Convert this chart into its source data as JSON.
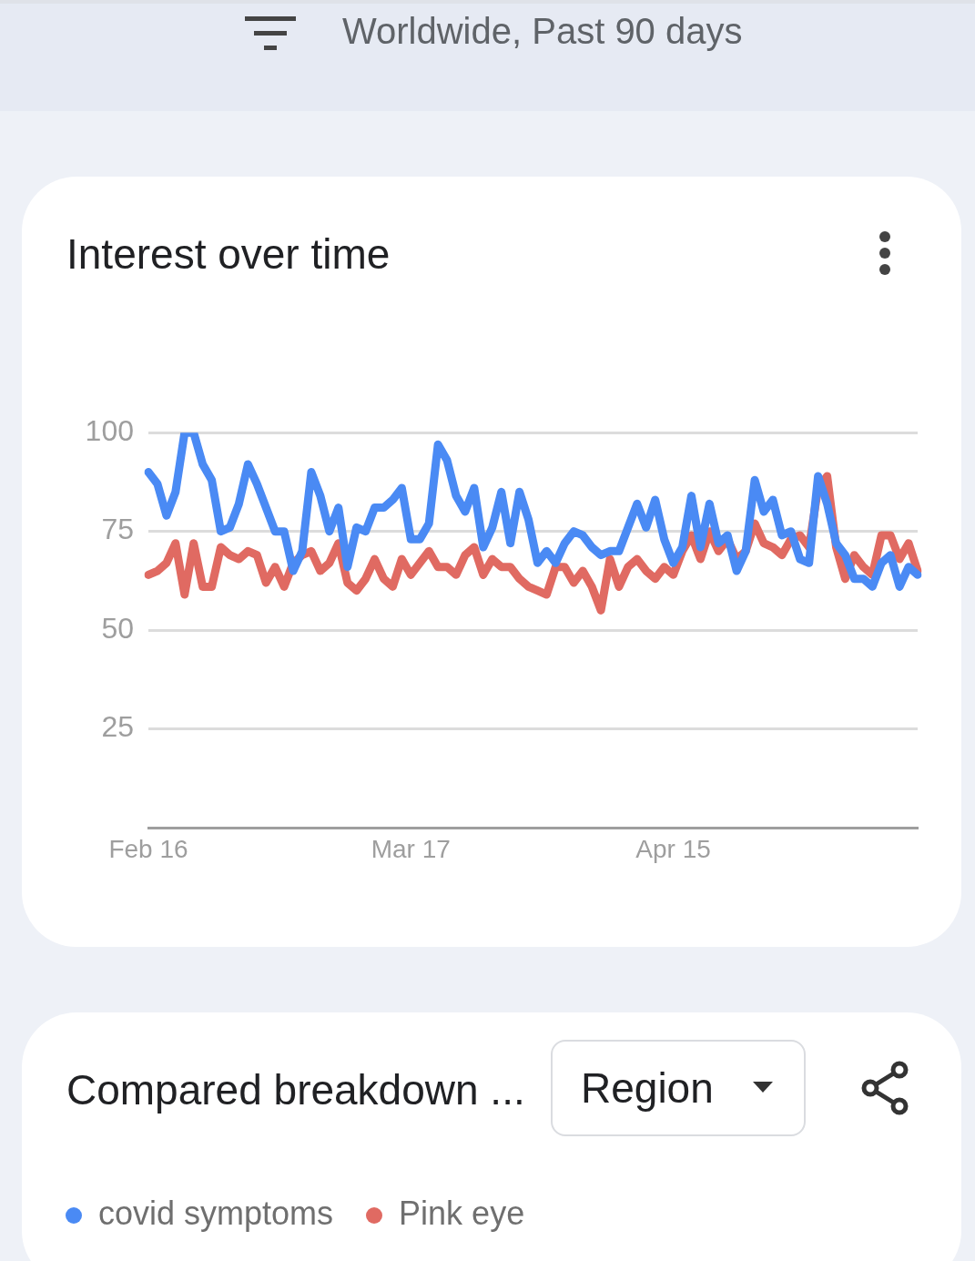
{
  "chart_data": {
    "type": "line",
    "title": "Interest over time",
    "subtitle": "Worldwide, Past 90 days",
    "annotations": [
      "Compared breakdown ...",
      "Region"
    ],
    "categories": [
      "Feb 16",
      null,
      null,
      null,
      null,
      null,
      null,
      null,
      null,
      null,
      null,
      null,
      null,
      null,
      null,
      null,
      null,
      null,
      null,
      null,
      null,
      null,
      null,
      null,
      null,
      null,
      null,
      null,
      null,
      "Mar 17",
      null,
      null,
      null,
      null,
      null,
      null,
      null,
      null,
      null,
      null,
      null,
      null,
      null,
      null,
      null,
      null,
      null,
      null,
      null,
      null,
      null,
      null,
      null,
      null,
      null,
      null,
      null,
      null,
      "Apr 15",
      null,
      null,
      null,
      null,
      null,
      null,
      null,
      null,
      null,
      null,
      null,
      null,
      null,
      null,
      null,
      null,
      null,
      null,
      null,
      null,
      null,
      null,
      null,
      null,
      null,
      null,
      null
    ],
    "series": [
      {
        "name": "covid symptoms",
        "color": "#4a8af4",
        "values": [
          90,
          87,
          79,
          85,
          100,
          100,
          92,
          88,
          75,
          76,
          82,
          92,
          87,
          81,
          75,
          75,
          65,
          70,
          90,
          84,
          75,
          81,
          66,
          76,
          75,
          81,
          81,
          83,
          86,
          73,
          73,
          77,
          97,
          93,
          84,
          80,
          86,
          71,
          76,
          85,
          72,
          85,
          78,
          67,
          70,
          67,
          72,
          75,
          74,
          71,
          69,
          70,
          70,
          76,
          82,
          76,
          83,
          73,
          67,
          71,
          84,
          71,
          82,
          72,
          74,
          65,
          70,
          88,
          80,
          83,
          74,
          75,
          68,
          67,
          89,
          82,
          72,
          69,
          63,
          63,
          61,
          67,
          69,
          61,
          66,
          64
        ]
      },
      {
        "name": "Pink eye",
        "color": "#e06a62",
        "values": [
          64,
          65,
          67,
          72,
          59,
          72,
          61,
          61,
          71,
          69,
          68,
          70,
          69,
          62,
          66,
          61,
          67,
          69,
          70,
          65,
          67,
          72,
          62,
          60,
          63,
          68,
          63,
          61,
          68,
          64,
          67,
          70,
          66,
          66,
          64,
          69,
          71,
          64,
          68,
          66,
          66,
          63,
          61,
          60,
          59,
          66,
          66,
          62,
          65,
          61,
          55,
          68,
          61,
          66,
          68,
          65,
          63,
          66,
          64,
          70,
          74,
          68,
          75,
          70,
          73,
          68,
          70,
          77,
          72,
          71,
          69,
          73,
          74,
          71,
          86,
          89,
          71,
          63,
          69,
          66,
          64,
          74,
          74,
          68,
          72,
          65
        ]
      }
    ],
    "ylim": [
      0,
      100
    ],
    "yticks": [
      25,
      50,
      75,
      100
    ],
    "grid": "y",
    "legend": "bottom",
    "marker": "none",
    "line_style": "solid"
  }
}
